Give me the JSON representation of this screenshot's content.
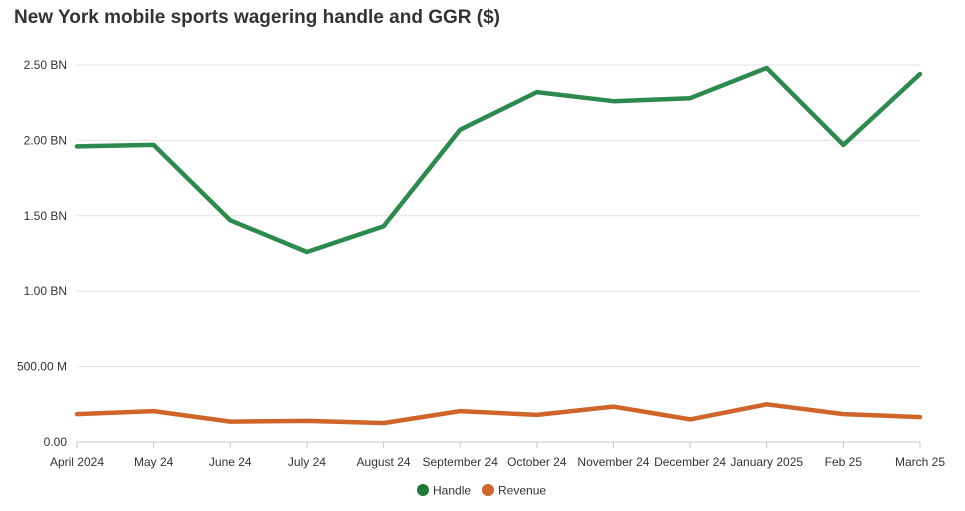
{
  "chart_data": {
    "type": "line",
    "title": "New York mobile sports wagering handle and GGR ($)",
    "categories": [
      "April 2024",
      "May 24",
      "June 24",
      "July 24",
      "August 24",
      "September 24",
      "October 24",
      "November 24",
      "December 24",
      "January 2025",
      "Feb 25",
      "March 25"
    ],
    "series": [
      {
        "name": "Handle",
        "color": "#2d8a4e",
        "values": [
          1960000000.0,
          1970000000.0,
          1470000000.0,
          1260000000.0,
          1430000000.0,
          2070000000.0,
          2320000000.0,
          2260000000.0,
          2280000000.0,
          2480000000.0,
          1970000000.0,
          2440000000.0
        ]
      },
      {
        "name": "Revenue",
        "color": "#d0652a",
        "values": [
          185000000.0,
          205000000.0,
          135000000.0,
          140000000.0,
          125000000.0,
          205000000.0,
          180000000.0,
          235000000.0,
          150000000.0,
          250000000.0,
          185000000.0,
          165000000.0
        ]
      }
    ],
    "yticks": [
      {
        "value": 0,
        "label": "0.00"
      },
      {
        "value": 500000000,
        "label": "500.00 M"
      },
      {
        "value": 1000000000,
        "label": "1.00 BN"
      },
      {
        "value": 1500000000,
        "label": "1.50 BN"
      },
      {
        "value": 2000000000,
        "label": "2.00 BN"
      },
      {
        "value": 2500000000,
        "label": "2.50 BN"
      }
    ],
    "ylim": [
      0,
      2500000000
    ],
    "grid": true,
    "legend_position": "bottom-center",
    "legend_marker_color": "#1f7a3a"
  }
}
